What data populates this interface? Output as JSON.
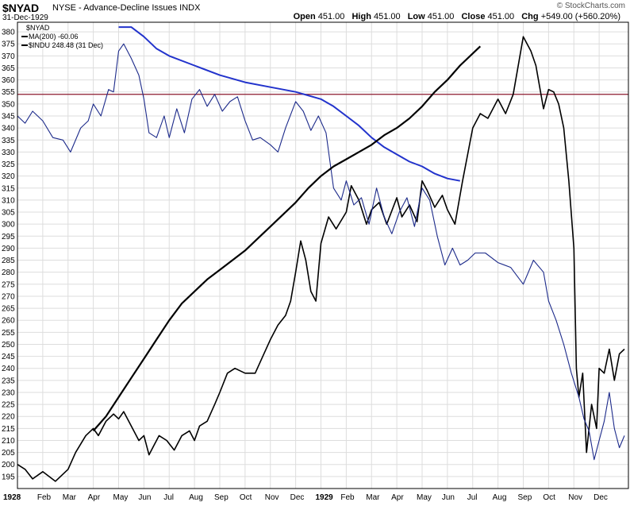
{
  "header": {
    "symbol": "$NYAD",
    "description": "NYSE - Advance-Decline Issues INDX",
    "date": "31-Dec-1929",
    "watermark": "© StockCharts.com",
    "open_label": "Open",
    "open": "451.00",
    "high_label": "High",
    "high": "451.00",
    "low_label": "Low",
    "low": "451.00",
    "close_label": "Close",
    "close": "451.00",
    "chg_label": "Chg",
    "chg": "+549.00 (+560.20%)"
  },
  "legend": {
    "items": [
      "$NYAD",
      "MA(200) -60.06",
      "$INDU 248.48 (31 Dec)"
    ]
  },
  "colors": {
    "indu": "#000000",
    "nyad": "#1c2a8a",
    "ma": "#2233cc",
    "ref_line": "#8b1a2e",
    "grid": "#dddddd"
  },
  "chart_data": {
    "type": "line",
    "title": "$NYAD",
    "xlabel": "",
    "ylabel": "",
    "ylim": [
      190,
      384
    ],
    "yticks": [
      195,
      200,
      205,
      210,
      215,
      220,
      225,
      230,
      235,
      240,
      245,
      250,
      255,
      260,
      265,
      270,
      275,
      280,
      285,
      290,
      295,
      300,
      305,
      310,
      315,
      320,
      325,
      330,
      335,
      340,
      345,
      350,
      355,
      360,
      365,
      370,
      375,
      380
    ],
    "x_ticks": [
      {
        "label": "1928",
        "bold": true
      },
      {
        "label": "Feb"
      },
      {
        "label": "Mar"
      },
      {
        "label": "Apr"
      },
      {
        "label": "May"
      },
      {
        "label": "Jun"
      },
      {
        "label": "Jul"
      },
      {
        "label": "Aug"
      },
      {
        "label": "Sep"
      },
      {
        "label": "Oct"
      },
      {
        "label": "Nov"
      },
      {
        "label": "Dec"
      },
      {
        "label": "1929",
        "bold": true
      },
      {
        "label": "Feb"
      },
      {
        "label": "Mar"
      },
      {
        "label": "Apr"
      },
      {
        "label": "May"
      },
      {
        "label": "Jun"
      },
      {
        "label": "Jul"
      },
      {
        "label": "Aug"
      },
      {
        "label": "Sep"
      },
      {
        "label": "Oct"
      },
      {
        "label": "Nov"
      },
      {
        "label": "Dec"
      }
    ],
    "month_index": [
      0,
      1,
      2,
      3,
      4,
      5,
      6,
      7,
      8,
      9,
      10,
      11,
      12,
      13,
      14,
      15,
      16,
      17,
      18,
      19,
      20,
      21,
      22,
      23
    ],
    "reference_line": 354,
    "series": [
      {
        "name": "$INDU",
        "x": [
          0,
          0.3,
          0.6,
          1.0,
          1.5,
          2.0,
          2.3,
          2.7,
          3.0,
          3.2,
          3.5,
          3.8,
          4.0,
          4.2,
          4.5,
          4.8,
          5.0,
          5.2,
          5.4,
          5.6,
          5.9,
          6.2,
          6.5,
          6.8,
          7.0,
          7.2,
          7.5,
          7.8,
          8.0,
          8.3,
          8.6,
          9.0,
          9.4,
          9.7,
          10.0,
          10.3,
          10.6,
          10.8,
          11.0,
          11.2,
          11.4,
          11.6,
          11.8,
          12.0,
          12.3,
          12.6,
          13.0,
          13.2,
          13.5,
          13.8,
          14.0,
          14.3,
          14.6,
          15.0,
          15.2,
          15.5,
          15.8,
          16.0,
          16.2,
          16.5,
          16.8,
          17.0,
          17.3,
          17.6,
          18.0,
          18.3,
          18.6,
          19.0,
          19.3,
          19.6,
          20.0,
          20.3,
          20.5,
          20.8,
          21.0,
          21.2,
          21.4,
          21.6,
          21.8,
          22.0,
          22.1,
          22.2,
          22.35,
          22.5,
          22.7,
          22.9,
          23.0,
          23.2,
          23.4,
          23.6,
          23.8,
          24.0
        ],
        "values": [
          200,
          198,
          194,
          197,
          193,
          198,
          205,
          212,
          215,
          212,
          218,
          221,
          219,
          222,
          216,
          210,
          212,
          204,
          208,
          212,
          210,
          206,
          212,
          214,
          210,
          216,
          218,
          225,
          230,
          238,
          240,
          238,
          238,
          245,
          252,
          258,
          262,
          268,
          280,
          293,
          285,
          272,
          268,
          292,
          303,
          298,
          305,
          316,
          310,
          300,
          306,
          309,
          300,
          311,
          303,
          308,
          301,
          318,
          314,
          307,
          312,
          306,
          300,
          318,
          340,
          346,
          344,
          352,
          346,
          354,
          378,
          372,
          366,
          348,
          356,
          355,
          350,
          340,
          318,
          290,
          240,
          228,
          238,
          205,
          225,
          215,
          240,
          238,
          248,
          235,
          246,
          248
        ]
      },
      {
        "name": "$NYAD",
        "x": [
          0,
          0.3,
          0.6,
          1.0,
          1.4,
          1.8,
          2.1,
          2.5,
          2.8,
          3.0,
          3.3,
          3.6,
          3.8,
          4.0,
          4.2,
          4.5,
          4.8,
          5.0,
          5.2,
          5.5,
          5.8,
          6.0,
          6.3,
          6.6,
          6.9,
          7.2,
          7.5,
          7.8,
          8.1,
          8.4,
          8.7,
          9.0,
          9.3,
          9.6,
          10.0,
          10.3,
          10.6,
          11.0,
          11.3,
          11.6,
          11.9,
          12.2,
          12.5,
          12.8,
          13.0,
          13.3,
          13.6,
          13.9,
          14.2,
          14.5,
          14.8,
          15.1,
          15.4,
          15.7,
          16.0,
          16.3,
          16.6,
          16.9,
          17.2,
          17.5,
          17.8,
          18.1,
          18.5,
          19.0,
          19.5,
          20.0,
          20.4,
          20.8,
          21.0,
          21.3,
          21.6,
          21.9,
          22.2,
          22.4,
          22.6,
          22.8,
          23.0,
          23.2,
          23.4,
          23.6,
          23.8,
          24.0
        ],
        "values": [
          345,
          342,
          347,
          343,
          336,
          335,
          330,
          340,
          343,
          350,
          345,
          356,
          355,
          372,
          375,
          369,
          362,
          352,
          338,
          336,
          345,
          336,
          348,
          338,
          352,
          356,
          349,
          354,
          347,
          351,
          353,
          343,
          335,
          336,
          333,
          330,
          340,
          351,
          347,
          339,
          345,
          338,
          315,
          310,
          318,
          308,
          311,
          300,
          315,
          303,
          296,
          305,
          311,
          299,
          315,
          310,
          295,
          283,
          290,
          283,
          285,
          288,
          288,
          284,
          282,
          275,
          285,
          280,
          268,
          260,
          250,
          238,
          228,
          219,
          214,
          202,
          210,
          218,
          230,
          215,
          207,
          212
        ]
      },
      {
        "name": "MA(200)",
        "x": [
          4.0,
          4.5,
          5.0,
          5.5,
          6.0,
          7.0,
          8.0,
          9.0,
          10.0,
          11.0,
          12.0,
          12.5,
          13.0,
          13.5,
          14.0,
          14.5,
          15.0,
          15.5,
          16.0,
          16.5,
          17.0,
          17.5
        ],
        "values": [
          382,
          382,
          378,
          373,
          370,
          366,
          362,
          359,
          357,
          355,
          352,
          349,
          345,
          341,
          336,
          332,
          329,
          326,
          324,
          321,
          319,
          318
        ]
      },
      {
        "name": "",
        "x": [
          3.0,
          3.5,
          4.0,
          4.5,
          5.0,
          5.5,
          6.0,
          6.5,
          7.0,
          7.5,
          8.0,
          8.5,
          9.0,
          9.5,
          10.0,
          10.5,
          11.0,
          11.5,
          12.0,
          12.5,
          13.0,
          13.5,
          14.0,
          14.5,
          15.0,
          15.5,
          16.0,
          16.5,
          17.0,
          17.5,
          18.0,
          18.3
        ],
        "values": [
          214,
          220,
          228,
          236,
          244,
          252,
          260,
          267,
          272,
          277,
          281,
          285,
          289,
          294,
          299,
          304,
          309,
          315,
          320,
          324,
          327,
          330,
          333,
          337,
          340,
          344,
          349,
          355,
          360,
          366,
          371,
          374
        ]
      }
    ]
  }
}
